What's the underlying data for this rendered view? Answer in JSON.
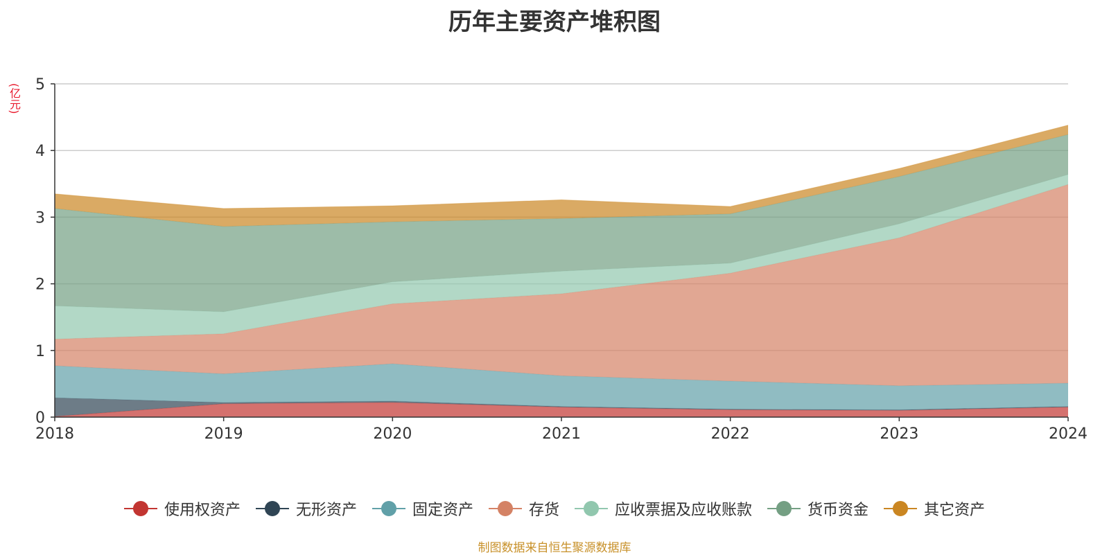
{
  "chart_data": {
    "type": "area",
    "stacked": true,
    "title": "历年主要资产堆积图",
    "ylabel": "(亿元)",
    "x": [
      "2018",
      "2019",
      "2020",
      "2021",
      "2022",
      "2023",
      "2024"
    ],
    "ylim": [
      0,
      5
    ],
    "yticks": [
      0,
      1,
      2,
      3,
      4,
      5
    ],
    "grid": true,
    "legend_position": "bottom",
    "series": [
      {
        "name": "使用权资产",
        "color": "#c23531",
        "values": [
          0.01,
          0.2,
          0.22,
          0.15,
          0.11,
          0.1,
          0.15
        ]
      },
      {
        "name": "无形资产",
        "color": "#2f4554",
        "values": [
          0.28,
          0.02,
          0.02,
          0.01,
          0.01,
          0.01,
          0.01
        ]
      },
      {
        "name": "固定资产",
        "color": "#61a0a8",
        "values": [
          0.48,
          0.43,
          0.56,
          0.46,
          0.42,
          0.36,
          0.35
        ]
      },
      {
        "name": "存货",
        "color": "#d48265",
        "values": [
          0.4,
          0.6,
          0.9,
          1.23,
          1.62,
          2.22,
          2.98
        ]
      },
      {
        "name": "应收票据及应收账款",
        "color": "#91c7ae",
        "values": [
          0.5,
          0.33,
          0.33,
          0.34,
          0.15,
          0.21,
          0.15
        ]
      },
      {
        "name": "货币资金",
        "color": "#749f83",
        "values": [
          1.46,
          1.28,
          0.9,
          0.79,
          0.74,
          0.71,
          0.6
        ]
      },
      {
        "name": "其它资产",
        "color": "#ca8622",
        "values": [
          0.22,
          0.27,
          0.24,
          0.28,
          0.11,
          0.12,
          0.14
        ]
      }
    ]
  },
  "footer": {
    "source": "制图数据来自恒生聚源数据库"
  }
}
